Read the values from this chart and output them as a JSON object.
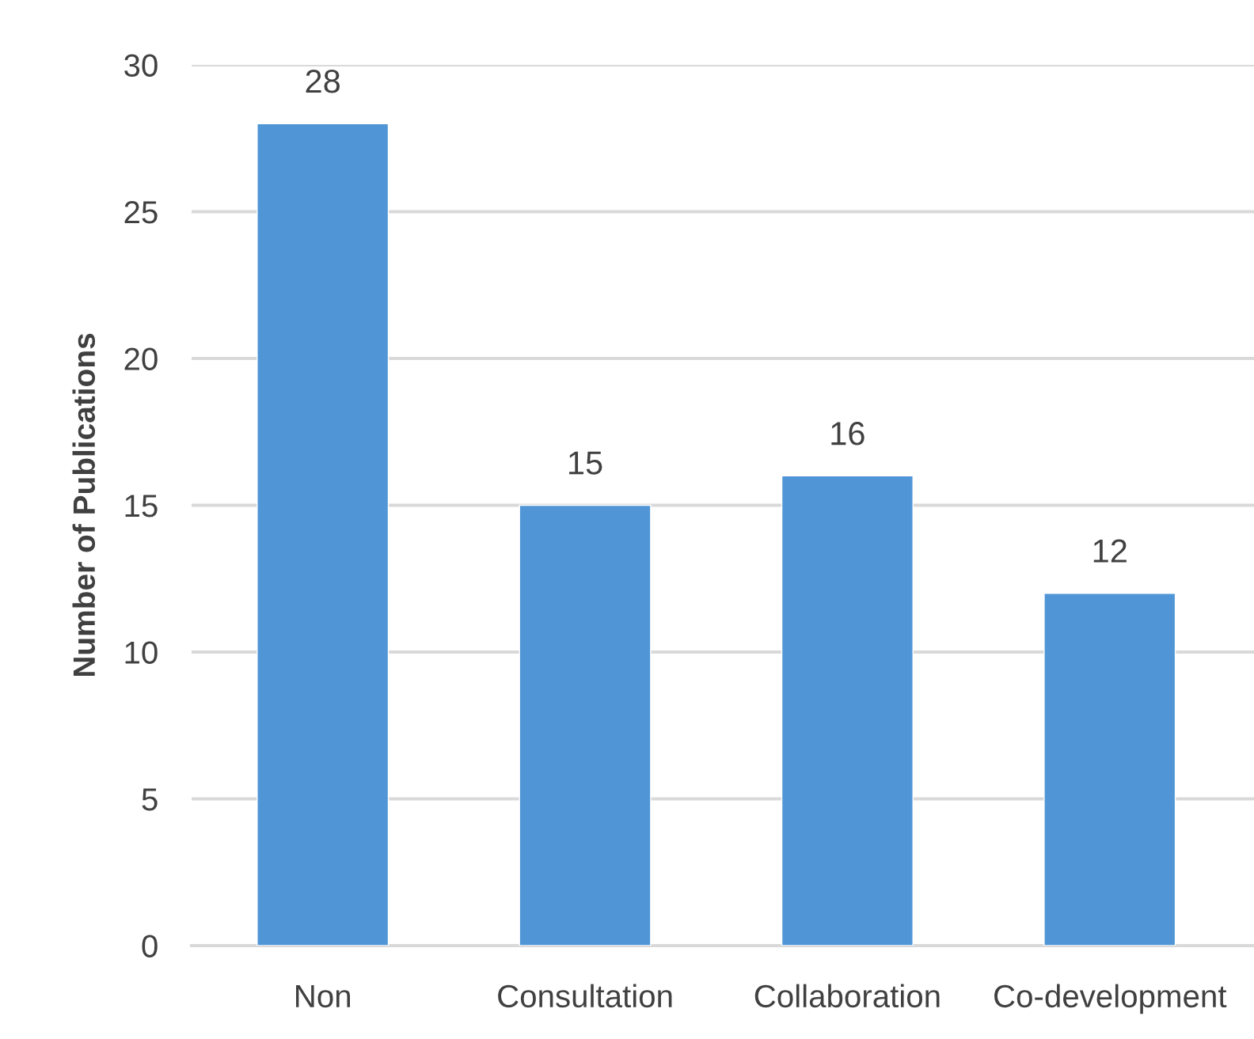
{
  "chart_data": {
    "type": "bar",
    "ylabel": "Number of Publications",
    "categories": [
      "Non",
      "Consultation",
      "Collaboration",
      "Co-development"
    ],
    "values": [
      28,
      15,
      16,
      12
    ],
    "color": "#5096d6",
    "ylim": [
      0,
      30
    ],
    "yticks": [
      0,
      5,
      10,
      15,
      20,
      25,
      30
    ],
    "grid": "y",
    "data_labels": true
  }
}
